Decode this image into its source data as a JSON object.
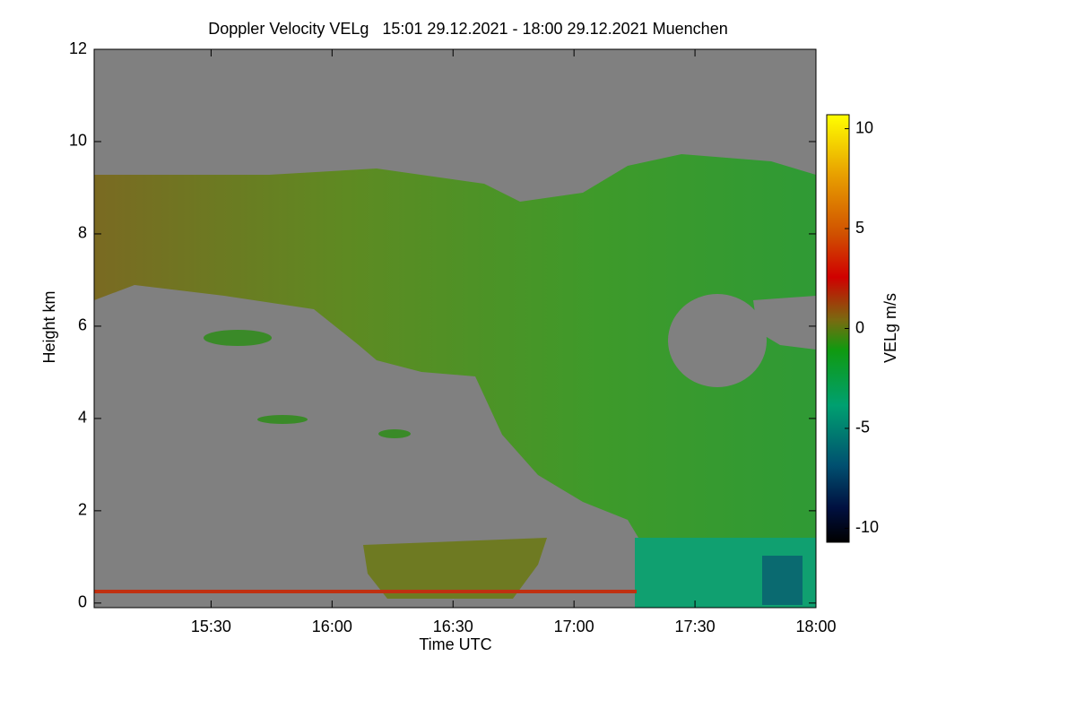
{
  "chart_data": {
    "type": "heatmap",
    "title": "Doppler Velocity VELg   15:01 29.12.2021 - 18:00 29.12.2021 Muenchen",
    "x_label": "Time UTC",
    "y_label": "Height km",
    "colorbar_label": "VELg m/s",
    "xlim": [
      15.0167,
      18.0
    ],
    "xticks": [
      {
        "value": 15.5,
        "label": "15:30"
      },
      {
        "value": 16.0,
        "label": "16:00"
      },
      {
        "value": 16.5,
        "label": "16:30"
      },
      {
        "value": 17.0,
        "label": "17:00"
      },
      {
        "value": 17.5,
        "label": "17:30"
      },
      {
        "value": 18.0,
        "label": "18:00"
      }
    ],
    "ylim": [
      -0.1,
      12
    ],
    "yticks": [
      0,
      2,
      4,
      6,
      8,
      10,
      12
    ],
    "clim": [
      -10.7,
      10.7
    ],
    "cticks": [
      -10,
      -5,
      0,
      5,
      10
    ]
  }
}
